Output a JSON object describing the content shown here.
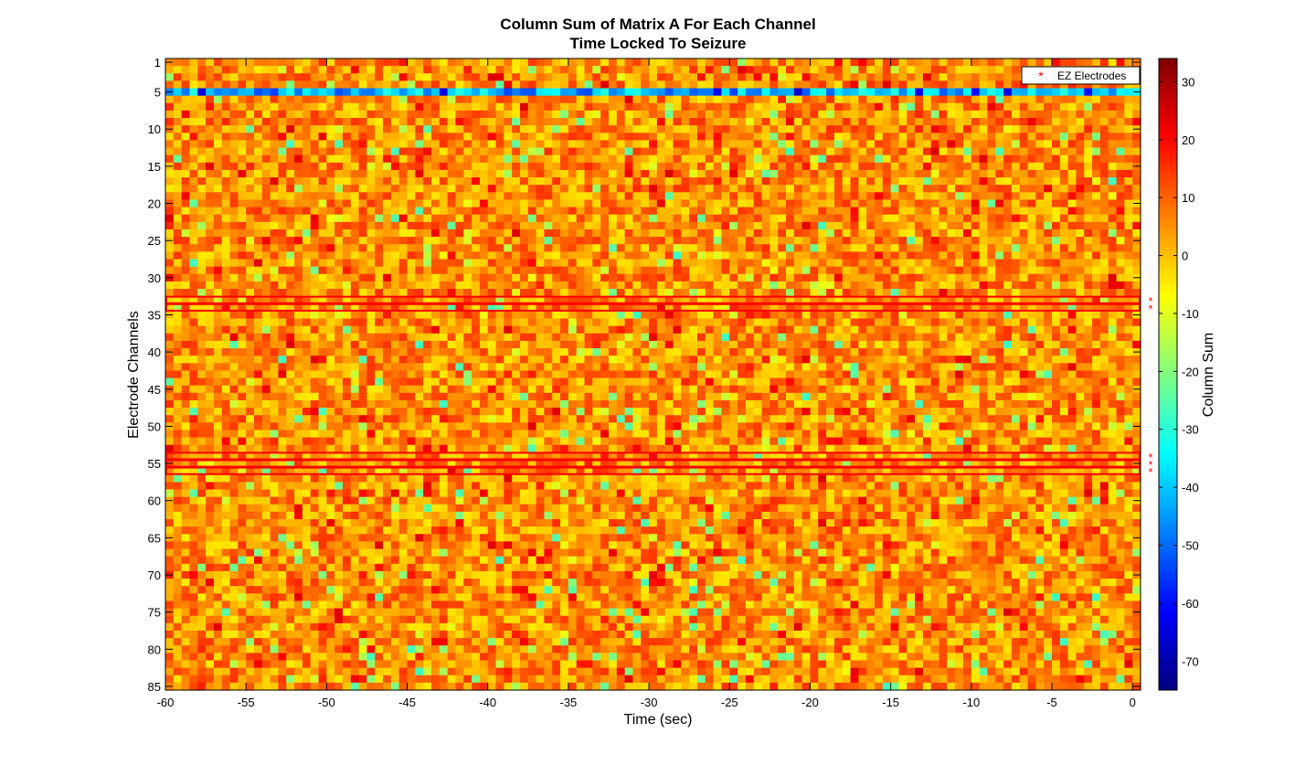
{
  "chart_data": {
    "type": "heatmap",
    "title": "Column Sum of Matrix A For Each Channel",
    "subtitle": "Time Locked To Seizure",
    "xlabel": "Time (sec)",
    "ylabel": "Electrode Channels",
    "xlim": [
      -60,
      0.5
    ],
    "ylim": [
      1,
      85
    ],
    "x_ticks": [
      -60,
      -55,
      -50,
      -45,
      -40,
      -35,
      -30,
      -25,
      -20,
      -15,
      -10,
      -5,
      0
    ],
    "y_ticks": [
      1,
      5,
      10,
      15,
      20,
      25,
      30,
      35,
      40,
      45,
      50,
      55,
      60,
      65,
      70,
      75,
      80,
      85
    ],
    "x_resolution_sec": 0.5,
    "n_channels": 85,
    "colorbar": {
      "label": "Column Sum",
      "range": [
        -75,
        34
      ],
      "ticks": [
        30,
        20,
        10,
        0,
        -10,
        -20,
        -30,
        -40,
        -50,
        -60,
        -70
      ],
      "colormap": "jet"
    },
    "typical_value_range": [
      -5,
      15
    ],
    "low_channel": {
      "channel": 5,
      "typical_range": [
        -55,
        -30
      ],
      "min_value": -68
    },
    "ez_electrodes": [
      33,
      34,
      54,
      55,
      56
    ],
    "legend": {
      "label": "EZ Electrodes",
      "position": "top-right",
      "marker": "*",
      "color": "#ff0000"
    },
    "highlight_color": "#ff0000"
  }
}
